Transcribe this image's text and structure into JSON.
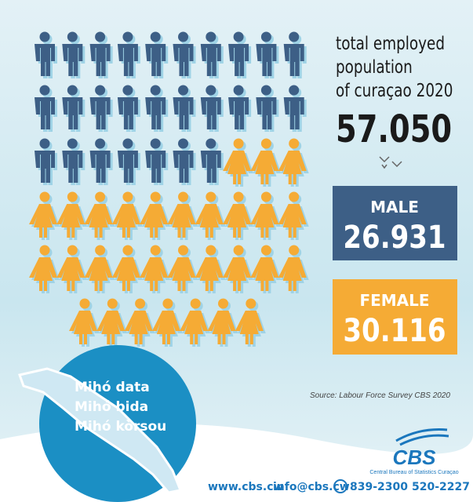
{
  "title": {
    "lines": [
      "total employed",
      "population",
      "of curaçao 2020"
    ],
    "total": "57.050"
  },
  "male": {
    "label": "MALE",
    "value": "26.931"
  },
  "female": {
    "label": "FEMALE",
    "value": "30.116"
  },
  "source": "Source: Labour Force Survey CBS 2020",
  "slogan": [
    "Mihó data",
    "Mihó bida",
    "Mihó kòrsou"
  ],
  "logo": {
    "name": "CBS",
    "subtitle": "Central Bureau of Statistics Curaçao"
  },
  "footer": {
    "website": "www.cbs.cw",
    "email": "info@cbs.cw",
    "phone1": "839-2300",
    "phone2": "520-2227"
  }
}
